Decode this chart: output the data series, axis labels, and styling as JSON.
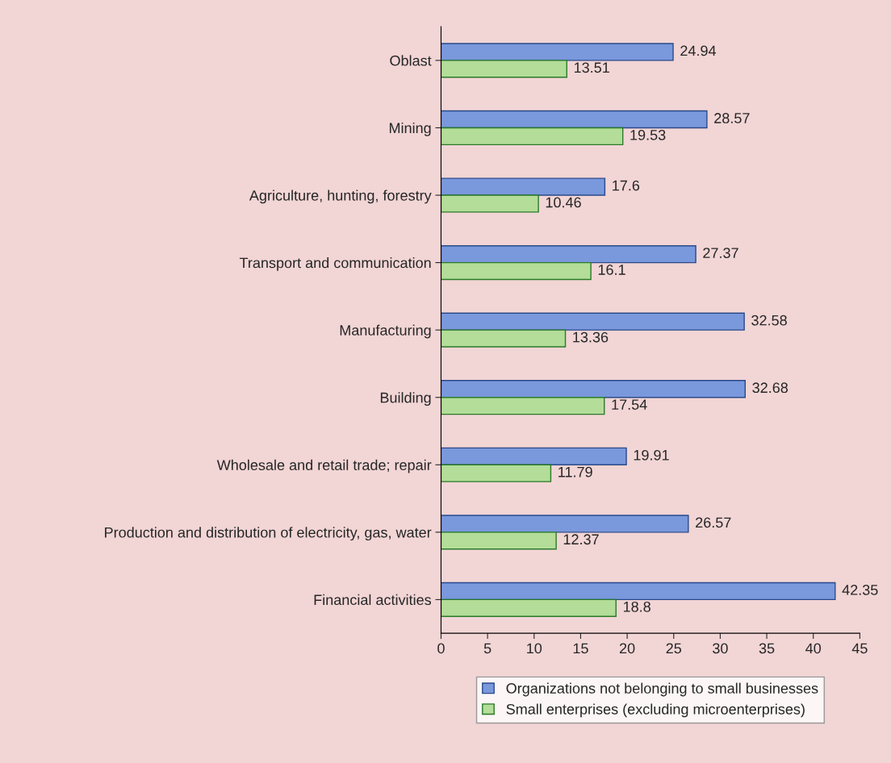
{
  "chart_data": {
    "type": "bar",
    "orientation": "horizontal",
    "categories": [
      "Oblast",
      "Mining",
      "Agriculture, hunting, forestry",
      "Transport and communication",
      "Manufacturing",
      "Building",
      "Wholesale and retail trade; repair",
      "Production and distribution of electricity, gas, water",
      "Financial activities"
    ],
    "series": [
      {
        "name": "Organizations not belonging to small businesses",
        "color": "#7a98dc",
        "values": [
          24.94,
          28.57,
          17.6,
          27.37,
          32.58,
          32.68,
          19.91,
          26.57,
          42.35
        ]
      },
      {
        "name": "Small enterprises (excluding microenterprises)",
        "color": "#b3dd98",
        "values": [
          13.51,
          19.53,
          10.46,
          16.1,
          13.36,
          17.54,
          11.79,
          12.37,
          18.8
        ]
      }
    ],
    "xlim": [
      0,
      45
    ],
    "xticks": [
      0,
      5,
      10,
      15,
      20,
      25,
      30,
      35,
      40,
      45
    ],
    "data_labels": true,
    "grid": false,
    "legend": "bottom"
  }
}
